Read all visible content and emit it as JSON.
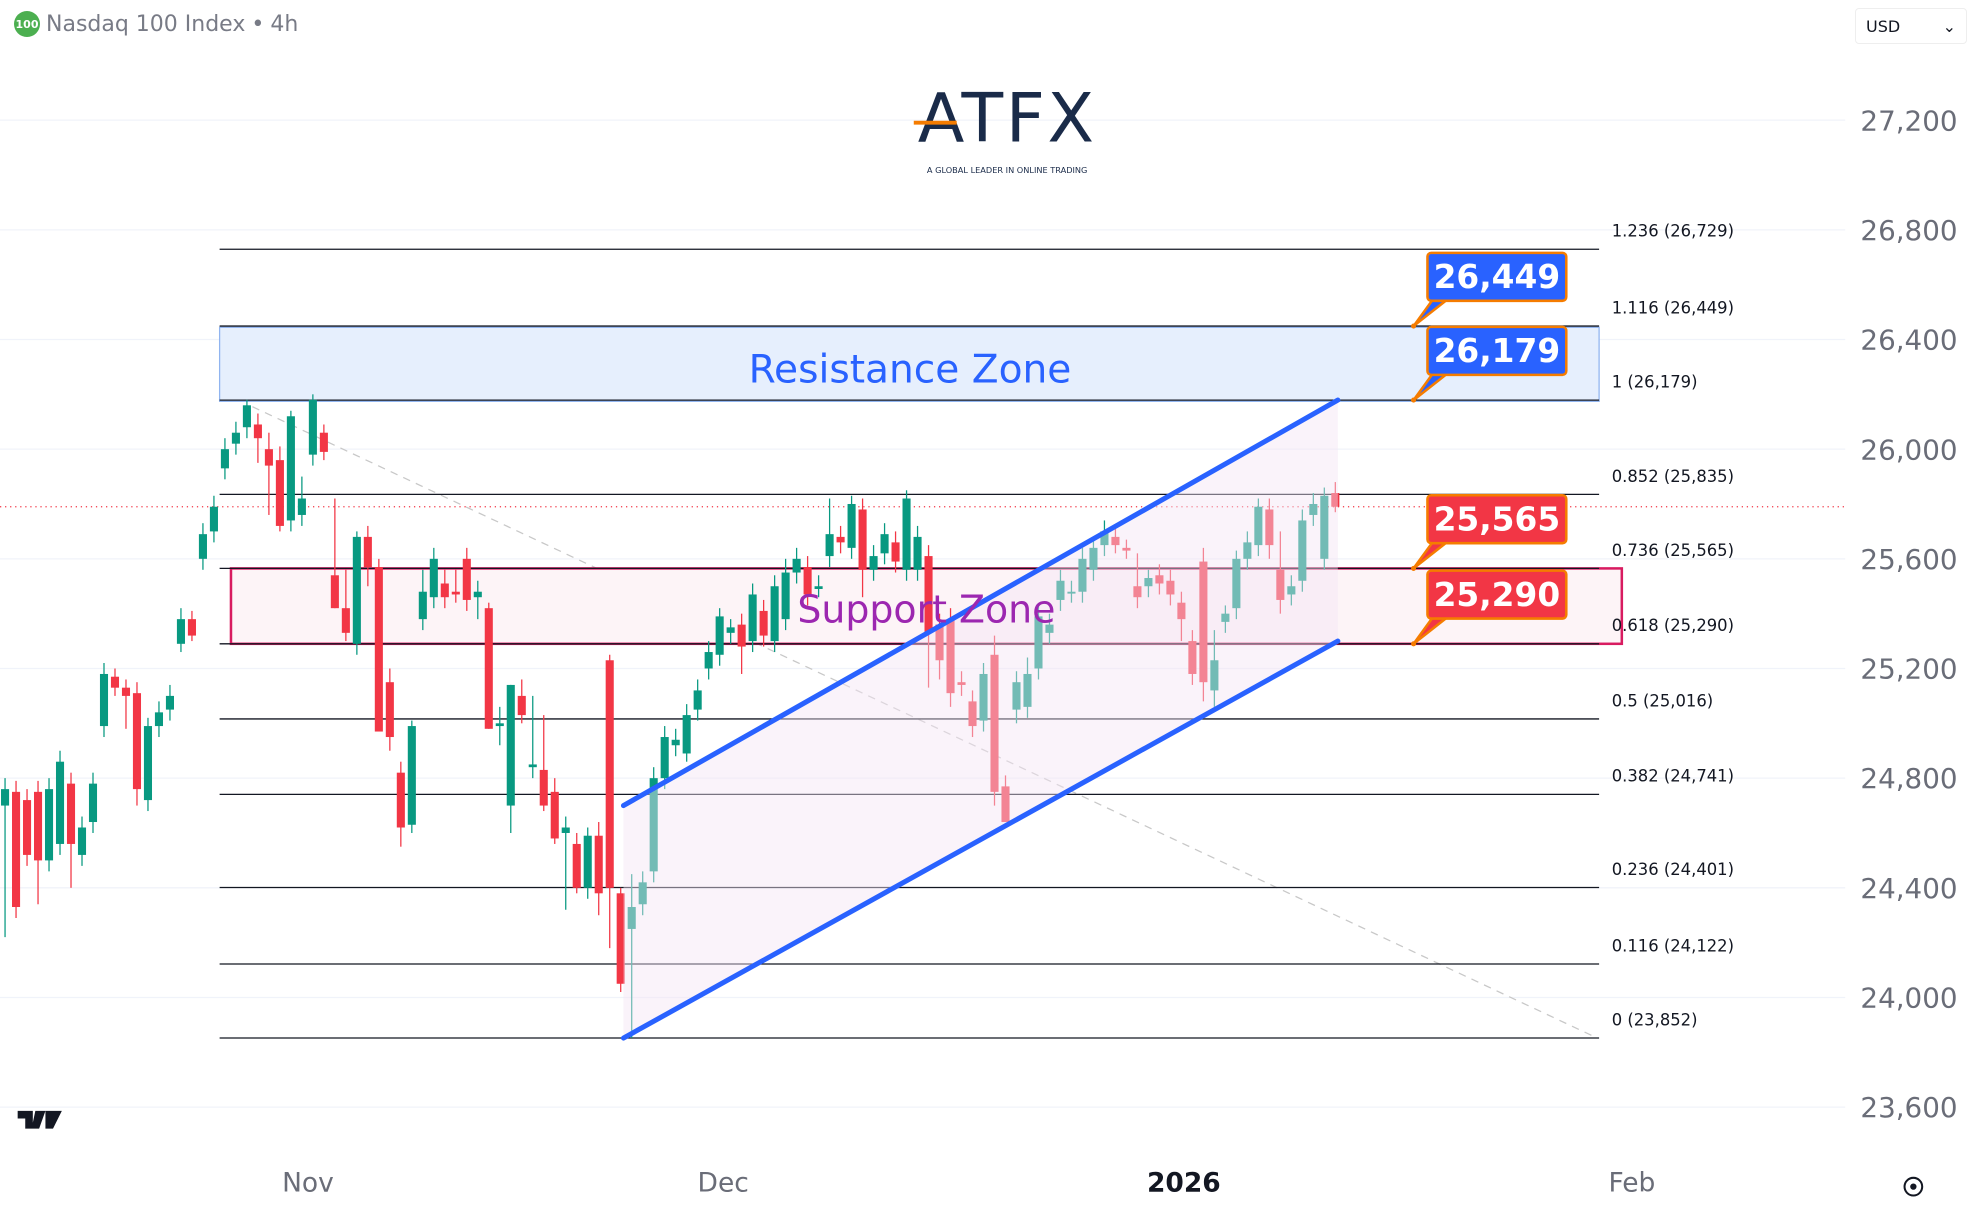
{
  "header": {
    "symbol_badge": "100",
    "title": "Nasdaq 100 Index",
    "separator": "•",
    "interval": "4h"
  },
  "currency": {
    "selected": "USD"
  },
  "logo": {
    "brand": "ATFX",
    "tagline": "A GLOBAL LEADER IN ONLINE TRADING"
  },
  "colors": {
    "up": "#089981",
    "down": "#f23645",
    "resistance": "#2962ff",
    "support_border": "#d81b60",
    "support_text": "#9c27b0",
    "channel": "#2962ff",
    "callout_blue": "#2962ff",
    "callout_red": "#f23645",
    "callout_border": "#f57c00"
  },
  "chart_data": {
    "type": "candlestick",
    "ylim": [
      23600,
      27200
    ],
    "y_ticks": [
      "27,200",
      "26,800",
      "26,400",
      "26,000",
      "25,600",
      "25,200",
      "24,800",
      "24,400",
      "24,000",
      "23,600"
    ],
    "y_tick_values": [
      27200,
      26800,
      26400,
      26000,
      25600,
      25200,
      24800,
      24400,
      24000,
      23600
    ],
    "x_ticks": [
      "Nov",
      "Dec",
      "2026",
      "Feb"
    ],
    "ohlc": [
      [
        24700,
        24800,
        24220,
        24760
      ],
      [
        24750,
        24790,
        24290,
        24330
      ],
      [
        24720,
        24760,
        24480,
        24520
      ],
      [
        24750,
        24790,
        24340,
        24500
      ],
      [
        24500,
        24800,
        24460,
        24760
      ],
      [
        24560,
        24900,
        24520,
        24860
      ],
      [
        24780,
        24820,
        24400,
        24560
      ],
      [
        24520,
        24660,
        24480,
        24620
      ],
      [
        24640,
        24820,
        24600,
        24780
      ],
      [
        24990,
        25220,
        24950,
        25180
      ],
      [
        25170,
        25200,
        25100,
        25130
      ],
      [
        25130,
        25160,
        24980,
        25100
      ],
      [
        25110,
        25150,
        24700,
        24760
      ],
      [
        24720,
        25020,
        24680,
        24990
      ],
      [
        24990,
        25080,
        24950,
        25040
      ],
      [
        25050,
        25140,
        25010,
        25100
      ],
      [
        25290,
        25420,
        25260,
        25380
      ],
      [
        25380,
        25410,
        25300,
        25320
      ],
      [
        25600,
        25730,
        25560,
        25690
      ],
      [
        25700,
        25830,
        25660,
        25790
      ],
      [
        25930,
        26040,
        25890,
        26000
      ],
      [
        26020,
        26100,
        25980,
        26060
      ],
      [
        26080,
        26180,
        26040,
        26160
      ],
      [
        26090,
        26130,
        25950,
        26040
      ],
      [
        26000,
        26060,
        25760,
        25940
      ],
      [
        25960,
        26010,
        25700,
        25720
      ],
      [
        25740,
        26140,
        25700,
        26120
      ],
      [
        25760,
        25900,
        25720,
        25820
      ],
      [
        25980,
        26200,
        25940,
        26180
      ],
      [
        26060,
        26090,
        25960,
        25990
      ],
      [
        25540,
        25820,
        25420,
        25420
      ],
      [
        25420,
        25560,
        25300,
        25330
      ],
      [
        25290,
        25700,
        25250,
        25680
      ],
      [
        25680,
        25720,
        25500,
        25570
      ],
      [
        25570,
        25600,
        24970,
        24970
      ],
      [
        25150,
        25200,
        24900,
        24950
      ],
      [
        24820,
        24860,
        24550,
        24620
      ],
      [
        24630,
        25010,
        24600,
        24990
      ],
      [
        25380,
        25560,
        25340,
        25480
      ],
      [
        25460,
        25640,
        25420,
        25600
      ],
      [
        25510,
        25560,
        25420,
        25460
      ],
      [
        25480,
        25560,
        25440,
        25470
      ],
      [
        25600,
        25640,
        25410,
        25450
      ],
      [
        25460,
        25520,
        25380,
        25480
      ],
      [
        25420,
        25440,
        24980,
        24980
      ],
      [
        24990,
        25060,
        24920,
        25000
      ],
      [
        24700,
        25140,
        24600,
        25140
      ],
      [
        25100,
        25160,
        25000,
        25030
      ],
      [
        24840,
        25100,
        24800,
        24850
      ],
      [
        24830,
        25030,
        24680,
        24700
      ],
      [
        24750,
        24800,
        24560,
        24580
      ],
      [
        24600,
        24660,
        24320,
        24620
      ],
      [
        24560,
        24600,
        24380,
        24400
      ],
      [
        24400,
        24620,
        24360,
        24590
      ],
      [
        24590,
        24640,
        24300,
        24380
      ],
      [
        25230,
        25250,
        24180,
        24400
      ],
      [
        24380,
        24400,
        24020,
        24050
      ],
      [
        24250,
        24450,
        23852,
        24330
      ],
      [
        24340,
        24460,
        24300,
        24420
      ],
      [
        24460,
        24840,
        24420,
        24800
      ],
      [
        24800,
        24990,
        24760,
        24950
      ],
      [
        24920,
        24980,
        24880,
        24940
      ],
      [
        24890,
        25070,
        24860,
        25030
      ],
      [
        25050,
        25160,
        25010,
        25120
      ],
      [
        25200,
        25300,
        25160,
        25260
      ],
      [
        25250,
        25420,
        25210,
        25390
      ],
      [
        25330,
        25380,
        25290,
        25350
      ],
      [
        25360,
        25400,
        25180,
        25280
      ],
      [
        25300,
        25510,
        25260,
        25470
      ],
      [
        25410,
        25450,
        25280,
        25320
      ],
      [
        25300,
        25540,
        25260,
        25500
      ],
      [
        25380,
        25600,
        25340,
        25550
      ],
      [
        25550,
        25640,
        25510,
        25600
      ],
      [
        25570,
        25610,
        25430,
        25470
      ],
      [
        25490,
        25540,
        25460,
        25500
      ],
      [
        25610,
        25820,
        25570,
        25690
      ],
      [
        25680,
        25720,
        25620,
        25660
      ],
      [
        25640,
        25830,
        25600,
        25800
      ],
      [
        25780,
        25820,
        25460,
        25560
      ],
      [
        25560,
        25650,
        25520,
        25610
      ],
      [
        25620,
        25730,
        25580,
        25690
      ],
      [
        25660,
        25700,
        25550,
        25590
      ],
      [
        25560,
        25850,
        25520,
        25820
      ],
      [
        25560,
        25720,
        25520,
        25680
      ],
      [
        25610,
        25650,
        25130,
        25330
      ],
      [
        25360,
        25400,
        25160,
        25230
      ],
      [
        25380,
        25420,
        25060,
        25110
      ],
      [
        25150,
        25190,
        25100,
        25140
      ],
      [
        25080,
        25120,
        24950,
        24990
      ],
      [
        25010,
        25220,
        24970,
        25180
      ],
      [
        25250,
        25320,
        24700,
        24750
      ],
      [
        24770,
        24810,
        24640,
        24640
      ],
      [
        25050,
        25190,
        25000,
        25150
      ],
      [
        25060,
        25240,
        25020,
        25180
      ],
      [
        25200,
        25430,
        25160,
        25390
      ],
      [
        25330,
        25400,
        25290,
        25360
      ],
      [
        25450,
        25560,
        25410,
        25520
      ],
      [
        25480,
        25520,
        25440,
        25480
      ],
      [
        25480,
        25640,
        25440,
        25600
      ],
      [
        25560,
        25680,
        25520,
        25640
      ],
      [
        25650,
        25740,
        25610,
        25700
      ],
      [
        25680,
        25720,
        25620,
        25650
      ],
      [
        25640,
        25670,
        25600,
        25630
      ],
      [
        25500,
        25620,
        25420,
        25460
      ],
      [
        25500,
        25560,
        25460,
        25530
      ],
      [
        25540,
        25580,
        25470,
        25510
      ],
      [
        25520,
        25560,
        25430,
        25470
      ],
      [
        25440,
        25480,
        25300,
        25380
      ],
      [
        25300,
        25340,
        25140,
        25180
      ],
      [
        25590,
        25640,
        25080,
        25150
      ],
      [
        25120,
        25340,
        25060,
        25230
      ],
      [
        25370,
        25430,
        25330,
        25400
      ],
      [
        25420,
        25630,
        25380,
        25600
      ],
      [
        25600,
        25700,
        25560,
        25660
      ],
      [
        25650,
        25820,
        25610,
        25790
      ],
      [
        25780,
        25820,
        25600,
        25650
      ],
      [
        25560,
        25700,
        25400,
        25450
      ],
      [
        25470,
        25540,
        25430,
        25500
      ],
      [
        25520,
        25780,
        25480,
        25740
      ],
      [
        25760,
        25840,
        25720,
        25800
      ],
      [
        25600,
        25860,
        25560,
        25830
      ],
      [
        25840,
        25880,
        25770,
        25790
      ]
    ],
    "last_price": 25790,
    "fibonacci": [
      {
        "ratio": "1.236",
        "value": 26729,
        "label": "1.236 (26,729)"
      },
      {
        "ratio": "1.116",
        "value": 26449,
        "label": "1.116 (26,449)"
      },
      {
        "ratio": "1",
        "value": 26179,
        "label": "1 (26,179)"
      },
      {
        "ratio": "0.852",
        "value": 25835,
        "label": "0.852 (25,835)"
      },
      {
        "ratio": "0.736",
        "value": 25565,
        "label": "0.736 (25,565)"
      },
      {
        "ratio": "0.618",
        "value": 25290,
        "label": "0.618 (25,290)"
      },
      {
        "ratio": "0.5",
        "value": 25016,
        "label": "0.5 (25,016)"
      },
      {
        "ratio": "0.382",
        "value": 24741,
        "label": "0.382 (24,741)"
      },
      {
        "ratio": "0.236",
        "value": 24401,
        "label": "0.236 (24,401)"
      },
      {
        "ratio": "0.116",
        "value": 24122,
        "label": "0.116 (24,122)"
      },
      {
        "ratio": "0",
        "value": 23852,
        "label": "0 (23,852)"
      }
    ],
    "zones": {
      "resistance": {
        "label": "Resistance Zone",
        "from": 26179,
        "to": 26449
      },
      "support": {
        "label": "Support Zone",
        "from": 25290,
        "to": 25565
      }
    },
    "channel": {
      "upper": [
        24700,
        26179
      ],
      "lower": [
        23852,
        25300
      ]
    },
    "callouts": [
      {
        "text": "26,449",
        "value": 26449,
        "color": "blue"
      },
      {
        "text": "26,179",
        "value": 26179,
        "color": "blue"
      },
      {
        "text": "25,565",
        "value": 25565,
        "color": "red"
      },
      {
        "text": "25,290",
        "value": 25290,
        "color": "red"
      }
    ]
  }
}
